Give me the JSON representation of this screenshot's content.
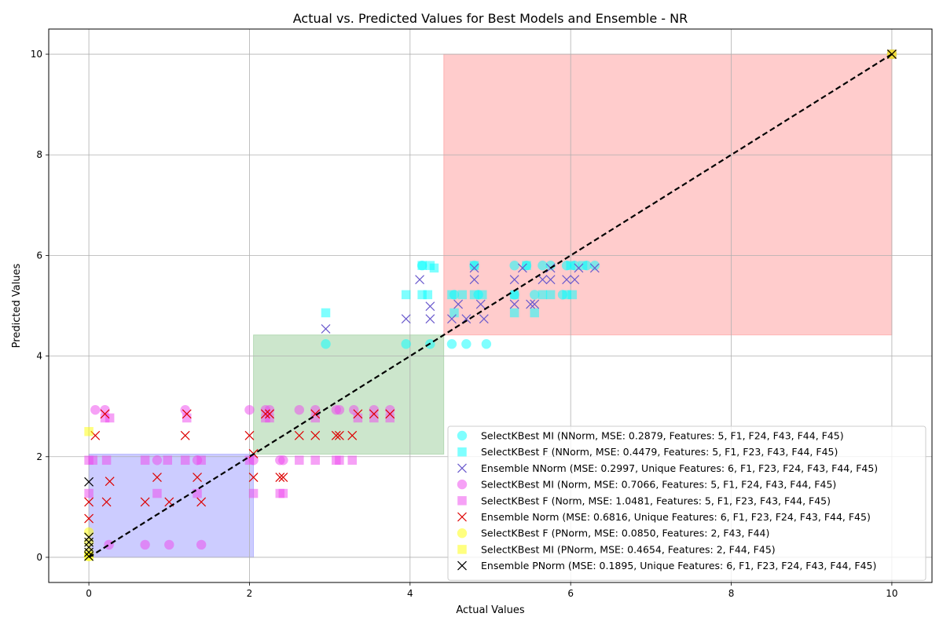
{
  "chart_data": {
    "type": "scatter",
    "title": "Actual vs. Predicted Values for Best Models and Ensemble - NR",
    "xlabel": "Actual Values",
    "ylabel": "Predicted Values",
    "xlim": [
      -0.5,
      10.5
    ],
    "ylim": [
      -0.5,
      10.5
    ],
    "xticks": [
      0,
      2,
      4,
      6,
      8,
      10
    ],
    "yticks": [
      0,
      2,
      4,
      6,
      8,
      10
    ],
    "grid": true,
    "legend_position": "lower-right",
    "regions": [
      {
        "x": [
          0,
          2.05
        ],
        "y": [
          0,
          2.05
        ],
        "color": "#0000ff"
      },
      {
        "x": [
          2.05,
          4.42
        ],
        "y": [
          2.05,
          4.42
        ],
        "color": "#008000"
      },
      {
        "x": [
          4.42,
          10
        ],
        "y": [
          4.42,
          10
        ],
        "color": "#ff0000"
      }
    ],
    "reference_line": {
      "from": [
        0,
        0
      ],
      "to": [
        10,
        10
      ],
      "style": "dashed",
      "color": "#000000"
    },
    "series": [
      {
        "name": "SelectKBest MI (NNorm, MSE: 0.2879, Features: 5, F1, F24, F43, F44, F45)",
        "marker": "circle",
        "color": "#00ffff",
        "points": [
          [
            2.95,
            4.24
          ],
          [
            3.95,
            4.24
          ],
          [
            4.25,
            4.24
          ],
          [
            4.52,
            4.24
          ],
          [
            4.7,
            4.24
          ],
          [
            4.95,
            4.24
          ],
          [
            4.15,
            5.8
          ],
          [
            4.8,
            5.8
          ],
          [
            5.3,
            5.8
          ],
          [
            5.45,
            5.8
          ],
          [
            5.65,
            5.8
          ],
          [
            5.75,
            5.8
          ],
          [
            5.95,
            5.8
          ],
          [
            6.05,
            5.8
          ],
          [
            6.2,
            5.8
          ],
          [
            6.3,
            5.8
          ],
          [
            4.55,
            5.22
          ],
          [
            4.85,
            5.22
          ],
          [
            5.3,
            5.22
          ],
          [
            5.55,
            5.22
          ],
          [
            5.9,
            5.22
          ],
          [
            10,
            10
          ]
        ]
      },
      {
        "name": "SelectKBest F (NNorm, MSE: 0.4479, Features: 5, F1, F23, F43, F44, F45)",
        "marker": "square",
        "color": "#00ffff",
        "points": [
          [
            2.95,
            4.86
          ],
          [
            3.95,
            5.22
          ],
          [
            4.15,
            5.22
          ],
          [
            4.22,
            5.22
          ],
          [
            4.52,
            5.22
          ],
          [
            4.65,
            5.22
          ],
          [
            4.8,
            5.22
          ],
          [
            4.9,
            5.22
          ],
          [
            5.3,
            5.22
          ],
          [
            5.65,
            5.22
          ],
          [
            5.75,
            5.22
          ],
          [
            5.95,
            5.22
          ],
          [
            6.02,
            5.22
          ],
          [
            4.15,
            5.8
          ],
          [
            4.25,
            5.8
          ],
          [
            4.8,
            5.8
          ],
          [
            5.45,
            5.8
          ],
          [
            6.0,
            5.8
          ],
          [
            6.15,
            5.8
          ],
          [
            4.55,
            4.86
          ],
          [
            5.3,
            4.86
          ],
          [
            5.55,
            4.86
          ],
          [
            4.3,
            5.75
          ],
          [
            10,
            10
          ]
        ]
      },
      {
        "name": "Ensemble NNorm (MSE: 0.2997, Unique Features: 6, F1, F23, F24, F43, F44, F45)",
        "marker": "x",
        "color": "#6a5acd",
        "points": [
          [
            2.95,
            4.54
          ],
          [
            3.95,
            4.74
          ],
          [
            4.25,
            4.74
          ],
          [
            4.25,
            4.99
          ],
          [
            4.12,
            5.52
          ],
          [
            4.52,
            4.74
          ],
          [
            4.7,
            4.74
          ],
          [
            4.92,
            4.74
          ],
          [
            4.6,
            5.03
          ],
          [
            4.88,
            5.03
          ],
          [
            5.3,
            5.03
          ],
          [
            5.5,
            5.03
          ],
          [
            4.8,
            5.52
          ],
          [
            5.3,
            5.52
          ],
          [
            5.65,
            5.52
          ],
          [
            5.75,
            5.52
          ],
          [
            5.95,
            5.52
          ],
          [
            6.05,
            5.52
          ],
          [
            5.55,
            5.03
          ],
          [
            4.8,
            5.75
          ],
          [
            5.4,
            5.75
          ],
          [
            5.75,
            5.75
          ],
          [
            6.1,
            5.75
          ],
          [
            6.3,
            5.75
          ],
          [
            10,
            10
          ]
        ]
      },
      {
        "name": "SelectKBest MI (Norm, MSE: 0.7066, Features: 5, F1, F24, F43, F44, F45)",
        "marker": "circle",
        "color": "#ee44ee",
        "points": [
          [
            0.08,
            2.93
          ],
          [
            0.2,
            2.93
          ],
          [
            1.2,
            2.93
          ],
          [
            2.0,
            2.93
          ],
          [
            2.2,
            2.93
          ],
          [
            2.25,
            2.93
          ],
          [
            2.62,
            2.93
          ],
          [
            2.82,
            2.93
          ],
          [
            3.08,
            2.93
          ],
          [
            3.12,
            2.93
          ],
          [
            3.3,
            2.93
          ],
          [
            3.55,
            2.93
          ],
          [
            3.75,
            2.93
          ],
          [
            0.25,
            0.25
          ],
          [
            0.7,
            0.25
          ],
          [
            1.0,
            0.25
          ],
          [
            1.4,
            0.25
          ],
          [
            0.85,
            1.93
          ],
          [
            1.35,
            1.93
          ],
          [
            2.05,
            1.93
          ],
          [
            2.38,
            1.93
          ],
          [
            2.42,
            1.93
          ],
          [
            10,
            10
          ]
        ]
      },
      {
        "name": "SelectKBest F (Norm, MSE: 1.0481, Features: 5, F1, F23, F43, F44, F45)",
        "marker": "square",
        "color": "#ee44ee",
        "points": [
          [
            0,
            1.93
          ],
          [
            0.05,
            1.93
          ],
          [
            0.22,
            1.93
          ],
          [
            0.7,
            1.93
          ],
          [
            0.98,
            1.93
          ],
          [
            1.2,
            1.93
          ],
          [
            1.4,
            1.93
          ],
          [
            2.0,
            1.93
          ],
          [
            2.62,
            1.93
          ],
          [
            2.82,
            1.93
          ],
          [
            3.08,
            1.93
          ],
          [
            3.12,
            1.93
          ],
          [
            3.28,
            1.93
          ],
          [
            0,
            1.27
          ],
          [
            0.85,
            1.27
          ],
          [
            1.35,
            1.27
          ],
          [
            2.05,
            1.27
          ],
          [
            2.38,
            1.27
          ],
          [
            2.42,
            1.27
          ],
          [
            0.2,
            2.77
          ],
          [
            0.26,
            2.77
          ],
          [
            1.22,
            2.77
          ],
          [
            2.2,
            2.77
          ],
          [
            2.25,
            2.77
          ],
          [
            2.82,
            2.77
          ],
          [
            3.35,
            2.77
          ],
          [
            3.55,
            2.77
          ],
          [
            3.75,
            2.77
          ],
          [
            10,
            10
          ]
        ]
      },
      {
        "name": "Ensemble Norm (MSE: 0.6816, Unique Features: 6, F1, F23, F24, F43, F44, F45)",
        "marker": "x",
        "color": "#dd0000",
        "points": [
          [
            0,
            1.1
          ],
          [
            0,
            0.77
          ],
          [
            0.08,
            2.42
          ],
          [
            0.2,
            2.85
          ],
          [
            0.22,
            1.1
          ],
          [
            0.26,
            1.51
          ],
          [
            0.7,
            1.1
          ],
          [
            0.85,
            1.59
          ],
          [
            1.0,
            1.1
          ],
          [
            1.2,
            2.42
          ],
          [
            1.22,
            2.85
          ],
          [
            1.35,
            1.59
          ],
          [
            1.4,
            1.1
          ],
          [
            2.0,
            2.42
          ],
          [
            2.05,
            2.06
          ],
          [
            2.05,
            1.59
          ],
          [
            2.2,
            2.85
          ],
          [
            2.25,
            2.85
          ],
          [
            2.38,
            1.59
          ],
          [
            2.42,
            1.59
          ],
          [
            2.62,
            2.42
          ],
          [
            2.82,
            2.42
          ],
          [
            2.82,
            2.85
          ],
          [
            3.08,
            2.42
          ],
          [
            3.12,
            2.42
          ],
          [
            3.28,
            2.42
          ],
          [
            3.35,
            2.85
          ],
          [
            3.55,
            2.85
          ],
          [
            3.75,
            2.85
          ],
          [
            10,
            10
          ]
        ]
      },
      {
        "name": "SelectKBest F (PNorm, MSE: 0.0850, Features: 2, F43, F44)",
        "marker": "circle",
        "color": "#ffff00",
        "points": [
          [
            0,
            0.5
          ],
          [
            0,
            0.3
          ],
          [
            0,
            0.1
          ],
          [
            0,
            0.02
          ],
          [
            10,
            10
          ]
        ]
      },
      {
        "name": "SelectKBest MI (PNorm, MSE: 0.4654, Features: 2, F44, F45)",
        "marker": "square",
        "color": "#ffff00",
        "points": [
          [
            0,
            2.5
          ],
          [
            0,
            0.02
          ],
          [
            10,
            10
          ]
        ]
      },
      {
        "name": "Ensemble PNorm (MSE: 0.1895, Unique Features: 6, F1, F23, F24, F43, F44, F45)",
        "marker": "x",
        "color": "#000000",
        "points": [
          [
            0,
            1.5
          ],
          [
            0,
            0.4
          ],
          [
            0,
            0.3
          ],
          [
            0,
            0.2
          ],
          [
            0,
            0.1
          ],
          [
            0,
            0.02
          ],
          [
            10,
            10
          ]
        ]
      }
    ]
  }
}
